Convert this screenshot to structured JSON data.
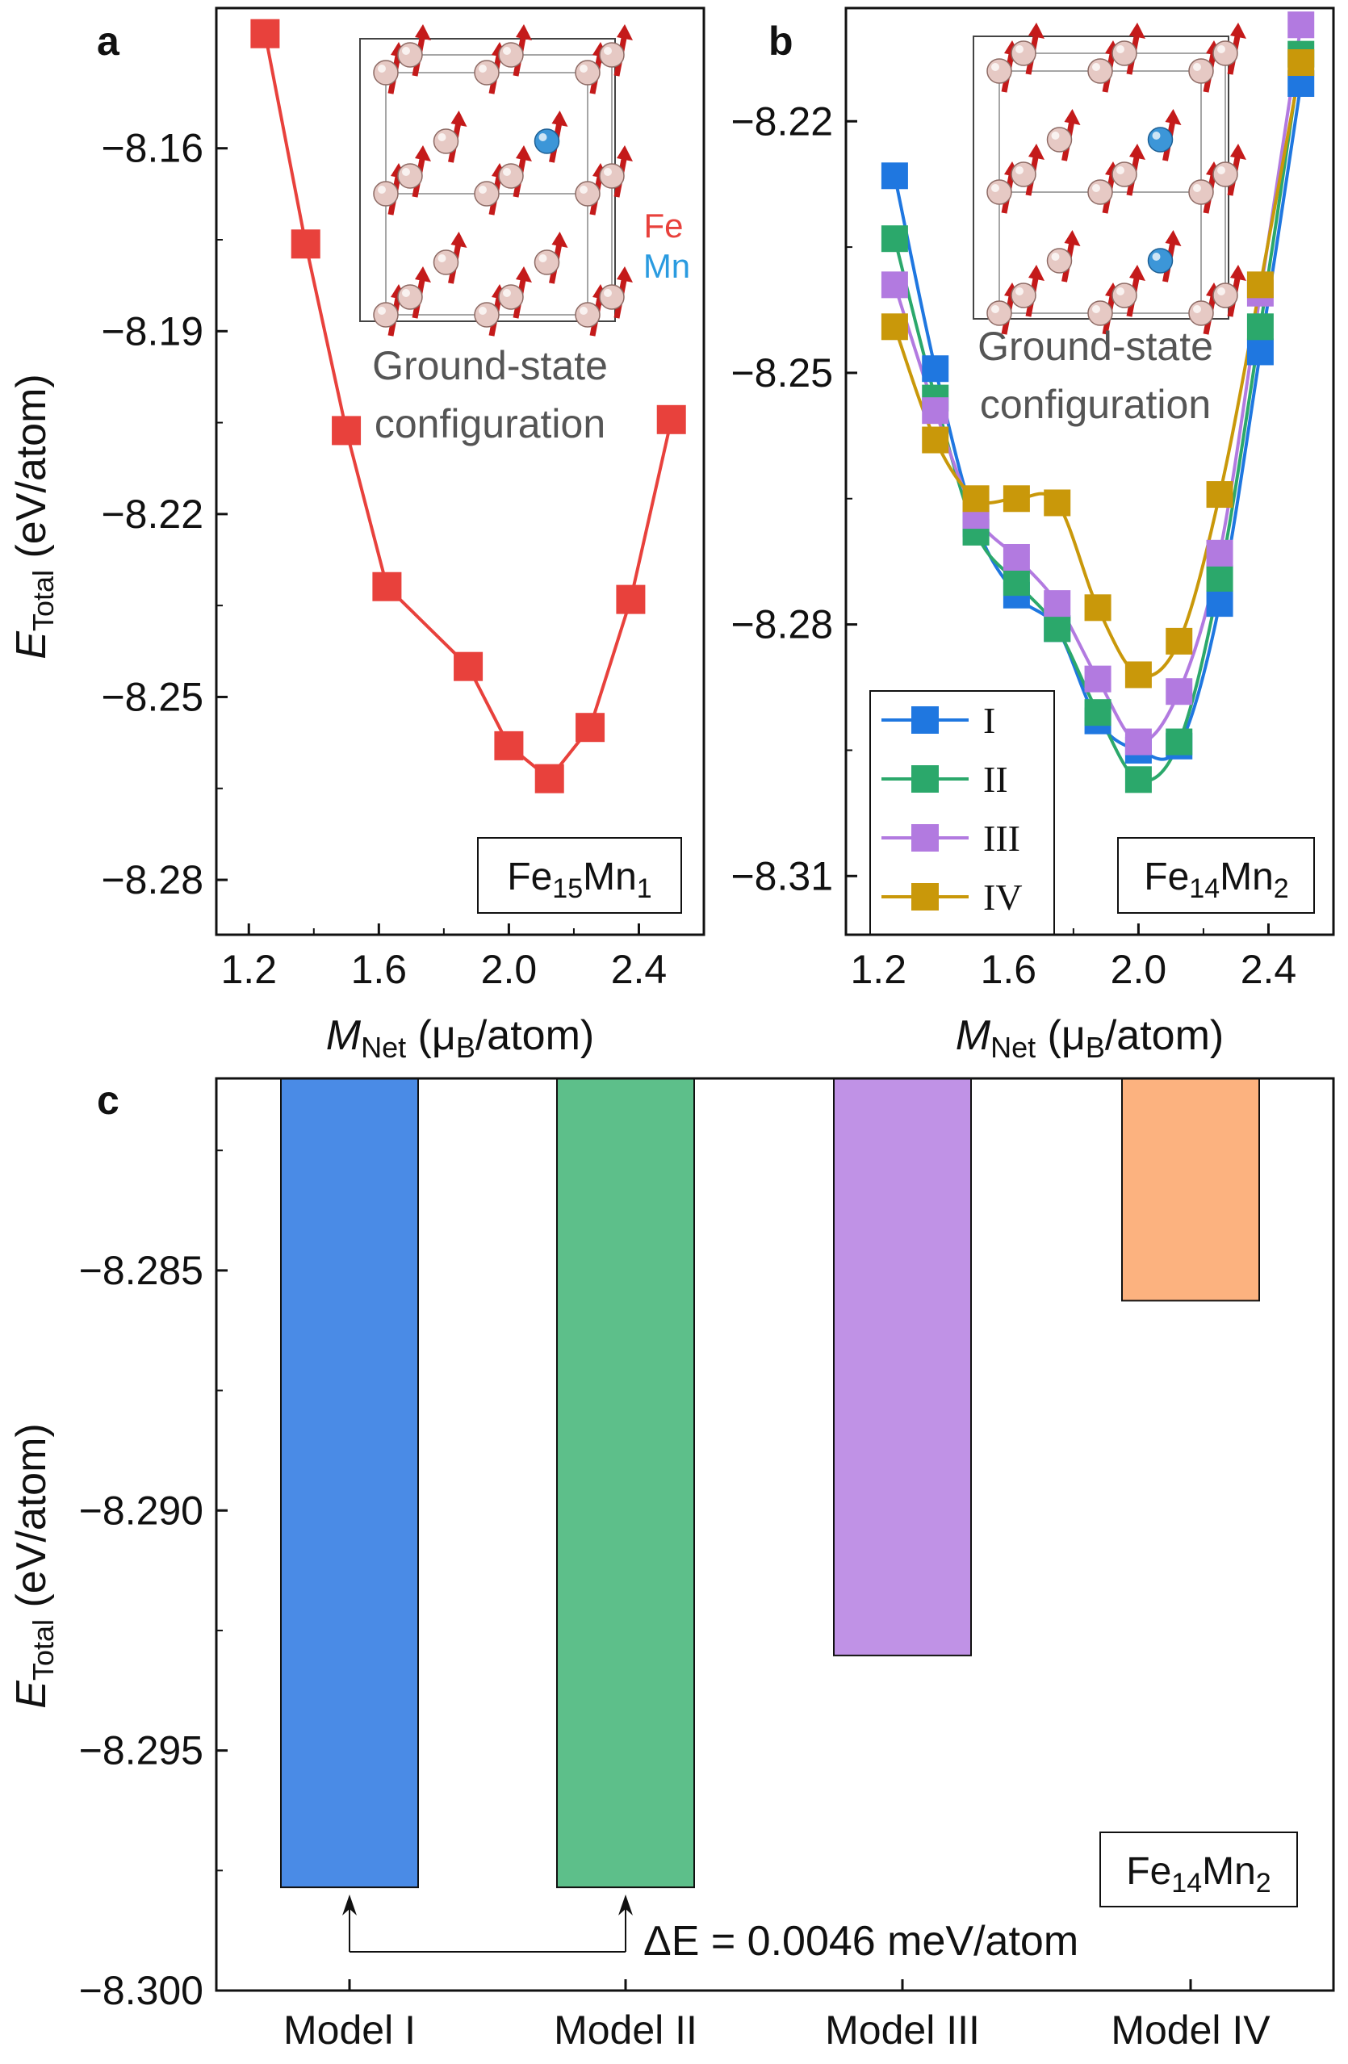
{
  "chart_data": [
    {
      "panel": "a",
      "type": "line",
      "title": "",
      "xlabel": "M_Net (μB/atom)",
      "xlabel_main": "M",
      "xlabel_sub": "Net",
      "xlabel_rest": " (μ",
      "xlabel_rest_sub": "B",
      "xlabel_tail": "/atom)",
      "ylabel_main": "E",
      "ylabel_sub": "Total",
      "ylabel_rest": " (eV/atom)",
      "xlim": [
        1.1,
        2.6
      ],
      "ylim": [
        -8.289,
        -8.137
      ],
      "xticks": [
        1.2,
        1.6,
        2.0,
        2.4
      ],
      "xtick_labels": [
        "1.2",
        "1.6",
        "2.0",
        "2.4"
      ],
      "yticks": [
        -8.16,
        -8.19,
        -8.22,
        -8.25,
        -8.28
      ],
      "ytick_labels": [
        "−8.16",
        "−8.19",
        "−8.22",
        "−8.25",
        "−8.28"
      ],
      "series": [
        {
          "name": "Fe15Mn1",
          "color": "#e8413c",
          "x": [
            1.25,
            1.375,
            1.5,
            1.625,
            1.875,
            2.0,
            2.125,
            2.25,
            2.375,
            2.5
          ],
          "y": [
            -8.1412,
            -8.1757,
            -8.2063,
            -8.2319,
            -8.245,
            -8.258,
            -8.2634,
            -8.255,
            -8.234,
            -8.2045
          ]
        }
      ],
      "annotation": {
        "compound": "Fe",
        "sub1": "15",
        "mid": "Mn",
        "sub2": "1"
      },
      "inset": {
        "caption_line1": "Ground-state",
        "caption_line2": "configuration",
        "label_fe": "Fe",
        "label_mn": "Mn"
      }
    },
    {
      "panel": "b",
      "type": "line",
      "title": "",
      "xlabel_main": "M",
      "xlabel_sub": "Net",
      "xlabel_rest": " (μ",
      "xlabel_rest_sub": "B",
      "xlabel_tail": "/atom)",
      "xlim": [
        1.1,
        2.6
      ],
      "ylim": [
        -8.317,
        -8.2065
      ],
      "xticks": [
        1.2,
        1.6,
        2.0,
        2.4
      ],
      "xtick_labels": [
        "1.2",
        "1.6",
        "2.0",
        "2.4"
      ],
      "yticks": [
        -8.22,
        -8.25,
        -8.28,
        -8.31
      ],
      "ytick_labels": [
        "−8.22",
        "−8.25",
        "−8.28",
        "−8.31"
      ],
      "series": [
        {
          "name": "I",
          "color": "#1f77e0",
          "x": [
            1.25,
            1.375,
            1.5,
            1.625,
            1.75,
            1.875,
            2.0,
            2.125,
            2.25,
            2.375,
            2.5
          ],
          "y": [
            -8.2265,
            -8.2495,
            -8.268,
            -8.2765,
            -8.2805,
            -8.2915,
            -8.295,
            -8.2945,
            -8.2775,
            -8.2475,
            -8.2155
          ]
        },
        {
          "name": "II",
          "color": "#2ba86b",
          "x": [
            1.25,
            1.375,
            1.5,
            1.625,
            1.75,
            1.875,
            2.0,
            2.125,
            2.25,
            2.375,
            2.5
          ],
          "y": [
            -8.234,
            -8.253,
            -8.269,
            -8.275,
            -8.2805,
            -8.2905,
            -8.2985,
            -8.294,
            -8.2745,
            -8.2445,
            -8.212
          ]
        },
        {
          "name": "III",
          "color": "#b27ae0",
          "x": [
            1.25,
            1.375,
            1.5,
            1.625,
            1.75,
            1.875,
            2.0,
            2.125,
            2.25,
            2.375,
            2.5
          ],
          "y": [
            -8.2395,
            -8.2545,
            -8.267,
            -8.272,
            -8.2775,
            -8.2865,
            -8.294,
            -8.288,
            -8.2715,
            -8.2405,
            -8.2085
          ]
        },
        {
          "name": "IV",
          "color": "#c9980a",
          "x": [
            1.25,
            1.375,
            1.5,
            1.625,
            1.75,
            1.875,
            2.0,
            2.125,
            2.25,
            2.375,
            2.5
          ],
          "y": [
            -8.2445,
            -8.258,
            -8.265,
            -8.265,
            -8.2655,
            -8.278,
            -8.286,
            -8.282,
            -8.2645,
            -8.2395,
            -8.213
          ]
        }
      ],
      "legend": {
        "location": "lower-left",
        "entries": [
          "I",
          "II",
          "III",
          "IV"
        ]
      },
      "annotation": {
        "compound": "Fe",
        "sub1": "14",
        "mid": "Mn",
        "sub2": "2"
      },
      "inset": {
        "caption_line1": "Ground-state",
        "caption_line2": "configuration"
      }
    },
    {
      "panel": "c",
      "type": "bar",
      "categories": [
        "Model I",
        "Model II",
        "Model III",
        "Model IV"
      ],
      "values": [
        -8.29785,
        -8.29785,
        -8.29302,
        -8.28563
      ],
      "colors": [
        "#4a8be6",
        "#5dbf8a",
        "#c092e6",
        "#fcb27f"
      ],
      "baseline": -8.281,
      "ylim": [
        -8.3,
        -8.281
      ],
      "yticks": [
        -8.285,
        -8.29,
        -8.295,
        -8.3
      ],
      "ytick_labels": [
        "−8.285",
        "−8.290",
        "−8.295",
        "−8.300"
      ],
      "ylabel_main": "E",
      "ylabel_sub": "Total",
      "ylabel_rest": " (eV/atom)",
      "annotation": {
        "compound": "Fe",
        "sub1": "14",
        "mid": "Mn",
        "sub2": "2"
      },
      "delta_label": "ΔE = 0.0046 meV/atom"
    }
  ],
  "panel_letters": [
    "a",
    "b",
    "c"
  ]
}
